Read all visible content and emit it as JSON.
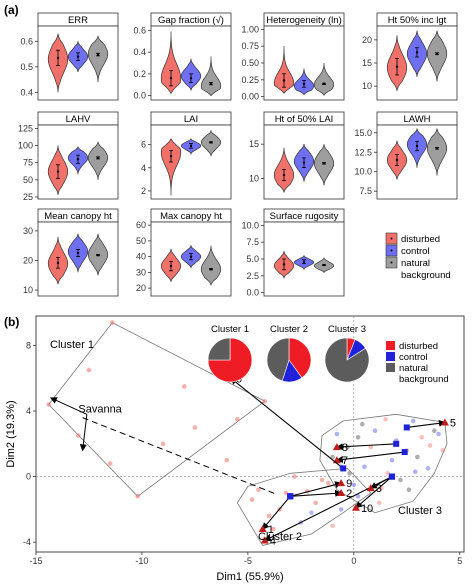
{
  "panel_a_label": "(a)",
  "panel_b_label": "(b)",
  "groups": [
    {
      "name": "disturbed",
      "color": "#f0706a"
    },
    {
      "name": "control",
      "color": "#6f6ff2"
    },
    {
      "name": "natural",
      "color": "#9e9e9e"
    },
    {
      "name": "background",
      "color": "#9e9e9e"
    }
  ],
  "legend_b": [
    {
      "name": "disturbed",
      "color": "#ee1c25"
    },
    {
      "name": "control",
      "color": "#1f22d8"
    },
    {
      "name": "natural",
      "color": "#5c5c5c"
    },
    {
      "name": "background",
      "color": "#5c5c5c"
    }
  ],
  "chart_data": [
    {
      "type": "violin",
      "title": "ERR",
      "ylim": [
        0.37,
        0.66
      ],
      "yticks": [
        {
          "v": 0.4,
          "t": "0.4"
        },
        {
          "v": 0.5,
          "t": "0.5"
        },
        {
          "v": 0.6,
          "t": "0.6"
        }
      ],
      "violins": [
        {
          "group": "disturbed",
          "min": 0.4,
          "max": 0.63,
          "mode": 0.53,
          "mean": 0.535,
          "err": 0.03
        },
        {
          "group": "control",
          "min": 0.48,
          "max": 0.6,
          "mode": 0.54,
          "mean": 0.54,
          "err": 0.015
        },
        {
          "group": "natural",
          "min": 0.44,
          "max": 0.62,
          "mode": 0.55,
          "mean": 0.548,
          "err": 0.005
        }
      ]
    },
    {
      "type": "violin",
      "title": "Gap fraction (√)",
      "ylim": [
        -0.04,
        0.64
      ],
      "yticks": [
        {
          "v": 0.0,
          "t": "0.0"
        },
        {
          "v": 0.2,
          "t": "0.2"
        },
        {
          "v": 0.4,
          "t": "0.4"
        },
        {
          "v": 0.6,
          "t": "0.6"
        }
      ],
      "violins": [
        {
          "group": "disturbed",
          "min": 0.02,
          "max": 0.59,
          "mode": 0.16,
          "mean": 0.16,
          "err": 0.07
        },
        {
          "group": "control",
          "min": 0.05,
          "max": 0.34,
          "mode": 0.18,
          "mean": 0.16,
          "err": 0.04
        },
        {
          "group": "natural",
          "min": 0.0,
          "max": 0.36,
          "mode": 0.09,
          "mean": 0.11,
          "err": 0.01
        }
      ]
    },
    {
      "type": "violin",
      "title": "Heterogeneity (ln)",
      "ylim": [
        -0.05,
        1.05
      ],
      "yticks": [
        {
          "v": 0.0,
          "t": "0.00"
        },
        {
          "v": 0.25,
          "t": "0.25"
        },
        {
          "v": 0.5,
          "t": "0.50"
        },
        {
          "v": 0.75,
          "t": "0.75"
        },
        {
          "v": 1.0,
          "t": "1.00"
        }
      ],
      "violins": [
        {
          "group": "disturbed",
          "min": 0.05,
          "max": 0.75,
          "mode": 0.2,
          "mean": 0.24,
          "err": 0.1
        },
        {
          "group": "control",
          "min": 0.03,
          "max": 0.42,
          "mode": 0.16,
          "mean": 0.19,
          "err": 0.05
        },
        {
          "group": "natural",
          "min": 0.02,
          "max": 0.5,
          "mode": 0.18,
          "mean": 0.19,
          "err": 0.01
        }
      ]
    },
    {
      "type": "violin",
      "title": "Ht 50% inc lgt",
      "ylim": [
        7,
        23
      ],
      "yticks": [
        {
          "v": 10,
          "t": "10"
        },
        {
          "v": 15,
          "t": "15"
        },
        {
          "v": 20,
          "t": "20"
        }
      ],
      "violins": [
        {
          "group": "disturbed",
          "min": 9,
          "max": 21,
          "mode": 14,
          "mean": 14.2,
          "err": 1.8
        },
        {
          "group": "control",
          "min": 12,
          "max": 22,
          "mode": 17,
          "mean": 17.3,
          "err": 1.0
        },
        {
          "group": "natural",
          "min": 11,
          "max": 22,
          "mode": 17,
          "mean": 17.0,
          "err": 0.2
        }
      ]
    },
    {
      "type": "violin",
      "title": "LAHV",
      "ylim": [
        22,
        130
      ],
      "yticks": [
        {
          "v": 25,
          "t": "25"
        },
        {
          "v": 50,
          "t": "50"
        },
        {
          "v": 75,
          "t": "75"
        },
        {
          "v": 100,
          "t": "100"
        },
        {
          "v": 125,
          "t": "125"
        }
      ],
      "violins": [
        {
          "group": "disturbed",
          "min": 28,
          "max": 100,
          "mode": 62,
          "mean": 62,
          "err": 10
        },
        {
          "group": "control",
          "min": 58,
          "max": 98,
          "mode": 82,
          "mean": 80,
          "err": 6
        },
        {
          "group": "natural",
          "min": 50,
          "max": 105,
          "mode": 82,
          "mean": 82,
          "err": 1.5
        }
      ]
    },
    {
      "type": "violin",
      "title": "LAI",
      "ylim": [
        1.3,
        7.7
      ],
      "yticks": [
        {
          "v": 2,
          "t": "2"
        },
        {
          "v": 4,
          "t": "4"
        },
        {
          "v": 6,
          "t": "6"
        }
      ],
      "violins": [
        {
          "group": "disturbed",
          "min": 1.6,
          "max": 6.5,
          "mode": 5.3,
          "mean": 5.0,
          "err": 0.5
        },
        {
          "group": "control",
          "min": 5.2,
          "max": 6.5,
          "mode": 5.9,
          "mean": 5.9,
          "err": 0.2
        },
        {
          "group": "natural",
          "min": 5.0,
          "max": 7.2,
          "mode": 6.2,
          "mean": 6.2,
          "err": 0.05
        }
      ]
    },
    {
      "type": "violin",
      "title": "Ht of 50% LAI",
      "ylim": [
        7,
        17.8
      ],
      "yticks": [
        {
          "v": 10,
          "t": "10"
        },
        {
          "v": 15,
          "t": "15"
        }
      ],
      "violins": [
        {
          "group": "disturbed",
          "min": 8,
          "max": 14.5,
          "mode": 10.5,
          "mean": 10.5,
          "err": 0.8
        },
        {
          "group": "control",
          "min": 9.5,
          "max": 15,
          "mode": 12.5,
          "mean": 12.3,
          "err": 0.7
        },
        {
          "group": "natural",
          "min": 9,
          "max": 15,
          "mode": 12.2,
          "mean": 12.2,
          "err": 0.1
        }
      ]
    },
    {
      "type": "violin",
      "title": "LAWH",
      "ylim": [
        6.5,
        16
      ],
      "yticks": [
        {
          "v": 7.5,
          "t": "7.5"
        },
        {
          "v": 10.0,
          "t": "10.0"
        },
        {
          "v": 12.5,
          "t": "12.5"
        },
        {
          "v": 15.0,
          "t": "15.0"
        }
      ],
      "violins": [
        {
          "group": "disturbed",
          "min": 9,
          "max": 14,
          "mode": 11.5,
          "mean": 11.5,
          "err": 0.7
        },
        {
          "group": "control",
          "min": 10.5,
          "max": 15.5,
          "mode": 13.5,
          "mean": 13.3,
          "err": 0.6
        },
        {
          "group": "natural",
          "min": 9.5,
          "max": 15.5,
          "mode": 13,
          "mean": 13.0,
          "err": 0.1
        }
      ]
    },
    {
      "type": "violin",
      "title": "Mean canopy ht",
      "ylim": [
        8,
        33
      ],
      "yticks": [
        {
          "v": 10,
          "t": "10"
        },
        {
          "v": 20,
          "t": "20"
        },
        {
          "v": 30,
          "t": "30"
        }
      ],
      "violins": [
        {
          "group": "disturbed",
          "min": 12,
          "max": 28,
          "mode": 19,
          "mean": 19.2,
          "err": 1.8
        },
        {
          "group": "control",
          "min": 16,
          "max": 29,
          "mode": 23,
          "mean": 22.5,
          "err": 1.2
        },
        {
          "group": "natural",
          "min": 15,
          "max": 29,
          "mode": 22,
          "mean": 21.8,
          "err": 0.2
        }
      ]
    },
    {
      "type": "violin",
      "title": "Max canopy ht",
      "ylim": [
        15,
        62
      ],
      "yticks": [
        {
          "v": 20,
          "t": "20"
        },
        {
          "v": 30,
          "t": "30"
        },
        {
          "v": 40,
          "t": "40"
        },
        {
          "v": 50,
          "t": "50"
        },
        {
          "v": 60,
          "t": "60"
        }
      ],
      "violins": [
        {
          "group": "disturbed",
          "min": 24,
          "max": 45,
          "mode": 34,
          "mean": 34,
          "err": 3
        },
        {
          "group": "control",
          "min": 33,
          "max": 47,
          "mode": 40,
          "mean": 40,
          "err": 2
        },
        {
          "group": "natural",
          "min": 22,
          "max": 47,
          "mode": 32,
          "mean": 32,
          "err": 0.4
        }
      ]
    },
    {
      "type": "violin",
      "title": "Surface rugosity",
      "ylim": [
        -0.5,
        10.5
      ],
      "yticks": [
        {
          "v": 0.0,
          "t": "0.0"
        },
        {
          "v": 2.5,
          "t": "2.5"
        },
        {
          "v": 5.0,
          "t": "5.0"
        },
        {
          "v": 7.5,
          "t": "7.5"
        },
        {
          "v": 10.0,
          "t": "10.0"
        }
      ],
      "violins": [
        {
          "group": "disturbed",
          "min": 2.2,
          "max": 6.2,
          "mode": 4.0,
          "mean": 4.2,
          "err": 0.8
        },
        {
          "group": "control",
          "min": 3.5,
          "max": 5.5,
          "mode": 4.5,
          "mean": 4.6,
          "err": 0.3
        },
        {
          "group": "natural",
          "min": 3.0,
          "max": 5.2,
          "mode": 4.0,
          "mean": 4.1,
          "err": 0.05
        }
      ]
    },
    {
      "type": "scatter",
      "xlabel": "Dim1 (55.9%)",
      "ylabel": "Dim2 (19.3%)",
      "xlim": [
        -15,
        5.2
      ],
      "ylim": [
        -4.6,
        9.8
      ],
      "xticks": [
        {
          "v": -15,
          "t": "-15"
        },
        {
          "v": -10,
          "t": "-10"
        },
        {
          "v": -5,
          "t": "-5"
        },
        {
          "v": 0,
          "t": "0"
        },
        {
          "v": 5,
          "t": "5"
        }
      ],
      "yticks": [
        {
          "v": -4,
          "t": "-4"
        },
        {
          "v": 0,
          "t": "0"
        },
        {
          "v": 4,
          "t": "4"
        },
        {
          "v": 8,
          "t": "8"
        }
      ],
      "labels": {
        "cluster1": "Cluster 1",
        "cluster2": "Cluster 2",
        "cluster3": "Cluster 3",
        "savanna": "Savanna"
      },
      "hulls": {
        "cluster1": [
          [
            -11.4,
            9.4
          ],
          [
            -14.4,
            4.4
          ],
          [
            -10.2,
            -1.2
          ],
          [
            -4.2,
            4.6
          ]
        ],
        "cluster2": [
          [
            -5.5,
            -1.6
          ],
          [
            -4.3,
            -4.2
          ],
          [
            -2.0,
            -3.5
          ],
          [
            -0.5,
            -2.2
          ],
          [
            0.8,
            -1.0
          ],
          [
            -0.3,
            0.5
          ],
          [
            -3.0,
            0.2
          ],
          [
            -5.0,
            -0.6
          ]
        ],
        "cluster3": [
          [
            -1.5,
            2.5
          ],
          [
            -0.5,
            3.4
          ],
          [
            2.0,
            3.8
          ],
          [
            4.3,
            3.3
          ],
          [
            4.4,
            2.0
          ],
          [
            3.8,
            0.2
          ],
          [
            2.8,
            -1.5
          ],
          [
            1.0,
            -2.2
          ],
          [
            -0.8,
            -0.8
          ],
          [
            -1.6,
            1.0
          ]
        ]
      },
      "points": [
        [
          -11.4,
          9.4
        ],
        [
          -14.4,
          4.4
        ],
        [
          -10.2,
          -1.2
        ],
        [
          -4.2,
          4.6
        ],
        [
          -12.5,
          6.5
        ],
        [
          -7.5,
          3.0
        ],
        [
          -9.0,
          2.0
        ],
        [
          -6.0,
          1.0
        ],
        [
          -13.0,
          2.5
        ],
        [
          -11.5,
          0.8
        ],
        [
          -8.0,
          5.5
        ],
        [
          -5.5,
          3.5
        ],
        [
          -4.8,
          -1.4
        ],
        [
          -4.0,
          -2.4
        ],
        [
          -3.2,
          -1.0
        ],
        [
          -2.5,
          -2.8
        ],
        [
          -1.8,
          -1.6
        ],
        [
          -1.2,
          -0.4
        ],
        [
          -0.6,
          -2.0
        ],
        [
          -2.8,
          0.0
        ],
        [
          -3.8,
          -3.2
        ],
        [
          -4.5,
          -0.8
        ],
        [
          -2.2,
          -0.9
        ],
        [
          -1.0,
          -3.0
        ],
        [
          0.2,
          -1.2
        ],
        [
          -0.2,
          0.2
        ],
        [
          -3.5,
          -2.0
        ],
        [
          -2.0,
          -2.2
        ],
        [
          -1.5,
          -0.2
        ],
        [
          -4.2,
          -3.8
        ],
        [
          -0.8,
          2.6
        ],
        [
          0.4,
          3.2
        ],
        [
          1.5,
          3.5
        ],
        [
          2.8,
          3.4
        ],
        [
          3.8,
          2.8
        ],
        [
          4.2,
          1.6
        ],
        [
          3.5,
          0.5
        ],
        [
          2.6,
          -0.8
        ],
        [
          1.2,
          -1.6
        ],
        [
          0.0,
          -0.5
        ],
        [
          -1.0,
          1.2
        ],
        [
          0.8,
          1.8
        ],
        [
          2.0,
          2.2
        ],
        [
          3.0,
          1.2
        ],
        [
          1.6,
          0.2
        ],
        [
          0.5,
          0.6
        ],
        [
          2.2,
          -0.2
        ],
        [
          3.2,
          2.4
        ],
        [
          1.0,
          2.8
        ],
        [
          -0.3,
          1.8
        ],
        [
          2.5,
          1.6
        ],
        [
          1.8,
          1.0
        ],
        [
          0.2,
          2.4
        ],
        [
          3.6,
          1.9
        ],
        [
          4.0,
          2.6
        ],
        [
          -0.6,
          0.6
        ],
        [
          1.3,
          -0.7
        ],
        [
          2.9,
          0.3
        ]
      ],
      "arrows": [
        {
          "from": [
            -3.0,
            -1.2
          ],
          "to": [
            -4.3,
            -3.2
          ],
          "label": "1"
        },
        {
          "from": [
            -3.0,
            -1.2
          ],
          "to": [
            -0.6,
            -1.0
          ],
          "label": "2"
        },
        {
          "from": [
            -3.0,
            -1.2
          ],
          "to": [
            -0.6,
            -0.4
          ],
          "label": "9"
        },
        {
          "from": [
            1.8,
            0.0
          ],
          "to": [
            -4.2,
            -3.9
          ],
          "label": "4"
        },
        {
          "from": [
            1.8,
            0.0
          ],
          "to": [
            0.1,
            -1.9
          ],
          "label": "10"
        },
        {
          "from": [
            1.8,
            0.0
          ],
          "to": [
            0.8,
            -0.7
          ],
          "label": "3"
        },
        {
          "from": [
            2.4,
            1.5
          ],
          "to": [
            -0.8,
            1.0
          ],
          "label": "7"
        },
        {
          "from": [
            2.0,
            2.0
          ],
          "to": [
            -0.8,
            1.8
          ],
          "label": "8"
        },
        {
          "from": [
            2.5,
            3.0
          ],
          "to": [
            4.3,
            3.3
          ],
          "label": "5"
        },
        {
          "from": [
            -0.5,
            0.5
          ],
          "to": [
            -5.8,
            6.0
          ],
          "label": "6"
        }
      ],
      "savanna_arrows": [
        [
          -14.3,
          4.8
        ],
        [
          -12.8,
          1.6
        ]
      ],
      "dashed_link": {
        "from": [
          -12.8,
          3.6
        ],
        "to": [
          -3.6,
          -1.1
        ]
      },
      "pies": [
        {
          "title": "Cluster 1",
          "values": [
            0.75,
            0.0,
            0.25
          ]
        },
        {
          "title": "Cluster 2",
          "values": [
            0.4,
            0.15,
            0.45
          ]
        },
        {
          "title": "Cluster 3",
          "values": [
            0.06,
            0.1,
            0.84
          ]
        }
      ]
    }
  ]
}
